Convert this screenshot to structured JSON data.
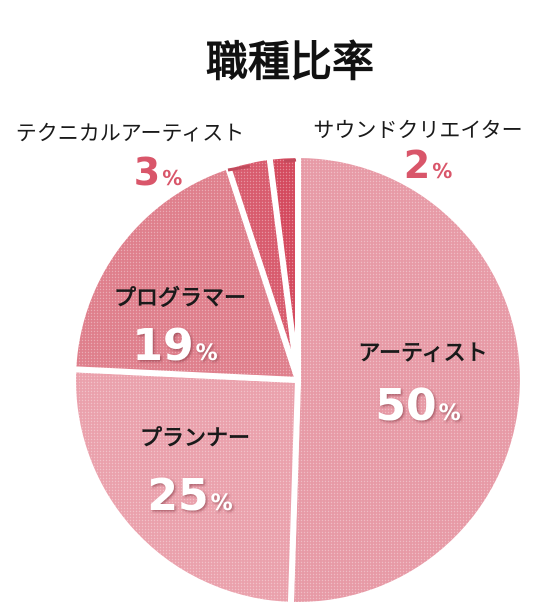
{
  "chart_data": {
    "type": "pie",
    "title": "職種比率",
    "unit": "%",
    "slices": [
      {
        "label": "アーティスト",
        "value": 50,
        "color": "#e79aa6"
      },
      {
        "label": "プランナー",
        "value": 25,
        "color": "#eaa1ac"
      },
      {
        "label": "プログラマー",
        "value": 19,
        "color": "#df7f8c"
      },
      {
        "label": "テクニカルアーティスト",
        "value": 3,
        "color": "#d85b6d"
      },
      {
        "label": "サウンドクリエイター",
        "value": 2,
        "color": "#d44a5e"
      }
    ],
    "accent_color": "#d9566a"
  }
}
